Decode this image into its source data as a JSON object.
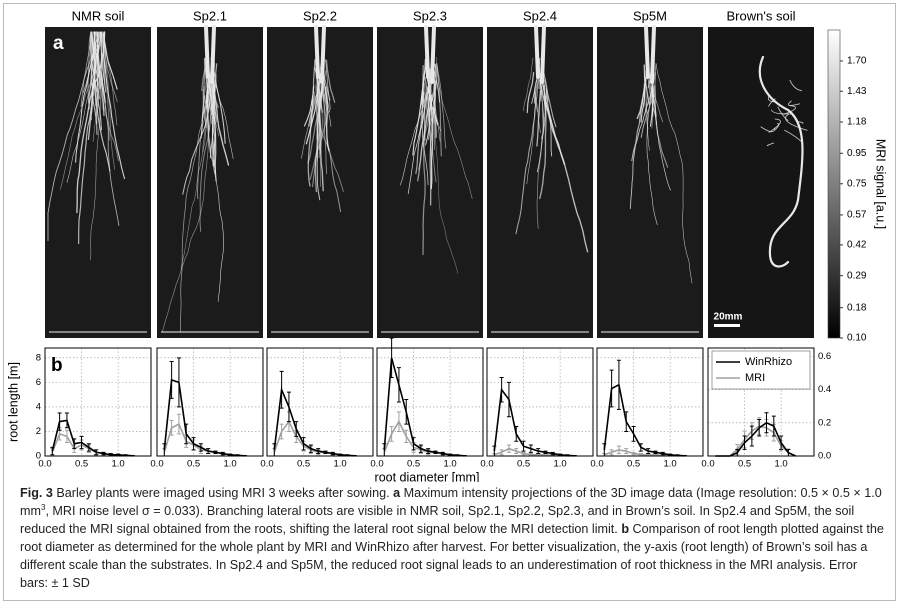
{
  "images": {
    "panel_label": "a",
    "scale_bar": "20mm",
    "panels": [
      "NMR soil",
      "Sp2.1",
      "Sp2.2",
      "Sp2.3",
      "Sp2.4",
      "Sp5M",
      "Brown's soil"
    ]
  },
  "colorbar": {
    "label": "MRI signal [a.u.]",
    "scale": "sqrt",
    "lim": [
      0.1,
      2.0
    ],
    "ticks": [
      {
        "value": 0.1,
        "label": "0.10"
      },
      {
        "value": 0.18,
        "label": "0.18"
      },
      {
        "value": 0.29,
        "label": "0.29"
      },
      {
        "value": 0.42,
        "label": "0.42"
      },
      {
        "value": 0.57,
        "label": "0.57"
      },
      {
        "value": 0.75,
        "label": "0.75"
      },
      {
        "value": 0.95,
        "label": "0.95"
      },
      {
        "value": 1.18,
        "label": "1.18"
      },
      {
        "value": 1.43,
        "label": "1.43"
      },
      {
        "value": 1.7,
        "label": "1.70"
      }
    ]
  },
  "chart_data": [
    {
      "type": "line",
      "panel_label": "b",
      "ylabel": "root length [m]",
      "xlabel": "root diameter [mm]",
      "ytick_labels": "left",
      "x": [
        0.1,
        0.2,
        0.3,
        0.4,
        0.5,
        0.6,
        0.7,
        0.8,
        0.9,
        1.0,
        1.1,
        1.2
      ],
      "xlim": [
        0,
        1.45
      ],
      "xticks": [
        {
          "value": 0,
          "label": "0.0"
        },
        {
          "value": 0.5,
          "label": "0.5"
        },
        {
          "value": 1,
          "label": "1.0"
        }
      ],
      "ylim": [
        0,
        8.8
      ],
      "yticks": [
        0,
        2,
        4,
        6,
        8
      ],
      "grid": true,
      "series": [
        {
          "color": "#000000",
          "values": [
            0.4,
            2.8,
            2.9,
            1.0,
            1.1,
            0.7,
            0.3,
            0.2,
            0.1,
            0.1,
            0.05,
            0.02
          ],
          "errors": [
            0.3,
            0.7,
            0.6,
            0.4,
            0.5,
            0.3,
            0.2,
            0.1,
            0.1,
            0.05,
            0.05,
            0.02
          ]
        },
        {
          "color": "#a0a0a0",
          "values": [
            0.3,
            1.8,
            1.6,
            0.6,
            0.9,
            0.6,
            0.3,
            0.2,
            0.1,
            0.1,
            0.05,
            0.02
          ],
          "errors": [
            0.3,
            0.5,
            0.5,
            0.3,
            0.4,
            0.3,
            0.2,
            0.1,
            0.1,
            0.05,
            0.05,
            0.02
          ]
        }
      ]
    },
    {
      "type": "line",
      "ytick_labels": "none",
      "x": [
        0.1,
        0.2,
        0.3,
        0.4,
        0.5,
        0.6,
        0.7,
        0.8,
        0.9,
        1.0,
        1.1,
        1.2
      ],
      "xlim": [
        0,
        1.45
      ],
      "xticks": [
        {
          "value": 0,
          "label": "0.0"
        },
        {
          "value": 0.5,
          "label": "0.5"
        },
        {
          "value": 1,
          "label": "1.0"
        }
      ],
      "ylim": [
        0,
        8.8
      ],
      "yticks": [
        0,
        2,
        4,
        6,
        8
      ],
      "grid": true,
      "series": [
        {
          "color": "#000000",
          "values": [
            0.5,
            6.2,
            6.0,
            1.8,
            1.0,
            0.7,
            0.4,
            0.3,
            0.2,
            0.1,
            0.05,
            0.02
          ],
          "errors": [
            0.5,
            1.5,
            2.0,
            0.8,
            0.5,
            0.3,
            0.2,
            0.1,
            0.1,
            0.05,
            0.05,
            0.02
          ]
        },
        {
          "color": "#a0a0a0",
          "values": [
            0.3,
            2.3,
            2.6,
            1.2,
            0.9,
            0.5,
            0.4,
            0.3,
            0.2,
            0.1,
            0.05,
            0.02
          ],
          "errors": [
            0.3,
            0.6,
            0.8,
            0.5,
            0.4,
            0.3,
            0.2,
            0.1,
            0.1,
            0.05,
            0.05,
            0.02
          ]
        }
      ]
    },
    {
      "type": "line",
      "ytick_labels": "none",
      "x": [
        0.1,
        0.2,
        0.3,
        0.4,
        0.5,
        0.6,
        0.7,
        0.8,
        0.9,
        1.0,
        1.1,
        1.2
      ],
      "xlim": [
        0,
        1.45
      ],
      "xticks": [
        {
          "value": 0,
          "label": "0.0"
        },
        {
          "value": 0.5,
          "label": "0.5"
        },
        {
          "value": 1,
          "label": "1.0"
        }
      ],
      "ylim": [
        0,
        8.8
      ],
      "yticks": [
        0,
        2,
        4,
        6,
        8
      ],
      "grid": true,
      "series": [
        {
          "color": "#000000",
          "values": [
            0.5,
            5.4,
            4.0,
            2.2,
            1.0,
            0.6,
            0.4,
            0.3,
            0.2,
            0.1,
            0.05,
            0.02
          ],
          "errors": [
            0.5,
            1.5,
            1.2,
            0.6,
            0.5,
            0.3,
            0.2,
            0.1,
            0.1,
            0.05,
            0.05,
            0.02
          ]
        },
        {
          "color": "#a0a0a0",
          "values": [
            0.3,
            2.0,
            2.8,
            1.6,
            0.8,
            0.5,
            0.3,
            0.3,
            0.2,
            0.1,
            0.05,
            0.02
          ],
          "errors": [
            0.3,
            0.6,
            0.8,
            0.5,
            0.4,
            0.3,
            0.2,
            0.1,
            0.1,
            0.05,
            0.05,
            0.02
          ]
        }
      ]
    },
    {
      "type": "line",
      "ytick_labels": "none",
      "x": [
        0.1,
        0.2,
        0.3,
        0.4,
        0.5,
        0.6,
        0.7,
        0.8,
        0.9,
        1.0,
        1.1,
        1.2
      ],
      "xlim": [
        0,
        1.45
      ],
      "xticks": [
        {
          "value": 0,
          "label": "0.0"
        },
        {
          "value": 0.5,
          "label": "0.5"
        },
        {
          "value": 1,
          "label": "1.0"
        }
      ],
      "ylim": [
        0,
        8.8
      ],
      "yticks": [
        0,
        2,
        4,
        6,
        8
      ],
      "grid": true,
      "series": [
        {
          "color": "#000000",
          "values": [
            0.5,
            8.0,
            5.8,
            3.6,
            1.0,
            0.6,
            0.4,
            0.3,
            0.2,
            0.1,
            0.05,
            0.02
          ],
          "errors": [
            0.5,
            1.6,
            1.4,
            1.0,
            0.5,
            0.3,
            0.2,
            0.1,
            0.1,
            0.05,
            0.05,
            0.02
          ]
        },
        {
          "color": "#a0a0a0",
          "values": [
            0.3,
            1.8,
            2.8,
            1.6,
            0.7,
            0.5,
            0.3,
            0.3,
            0.2,
            0.1,
            0.05,
            0.02
          ],
          "errors": [
            0.3,
            0.6,
            0.8,
            0.5,
            0.4,
            0.3,
            0.2,
            0.1,
            0.1,
            0.05,
            0.05,
            0.02
          ]
        }
      ]
    },
    {
      "type": "line",
      "ytick_labels": "none",
      "x": [
        0.1,
        0.2,
        0.3,
        0.4,
        0.5,
        0.6,
        0.7,
        0.8,
        0.9,
        1.0,
        1.1,
        1.2
      ],
      "xlim": [
        0,
        1.45
      ],
      "xticks": [
        {
          "value": 0,
          "label": "0.0"
        },
        {
          "value": 0.5,
          "label": "0.5"
        },
        {
          "value": 1,
          "label": "1.0"
        }
      ],
      "ylim": [
        0,
        8.8
      ],
      "yticks": [
        0,
        2,
        4,
        6,
        8
      ],
      "grid": true,
      "series": [
        {
          "color": "#000000",
          "values": [
            0.4,
            5.4,
            4.6,
            1.8,
            0.8,
            0.6,
            0.4,
            0.3,
            0.2,
            0.1,
            0.05,
            0.02
          ],
          "errors": [
            0.4,
            1.0,
            1.4,
            0.6,
            0.4,
            0.3,
            0.2,
            0.1,
            0.1,
            0.05,
            0.05,
            0.02
          ]
        },
        {
          "color": "#a0a0a0",
          "values": [
            0.1,
            0.3,
            0.6,
            0.4,
            0.2,
            0.1,
            0.1,
            0.1,
            0.05,
            0.05,
            0.02,
            0.02
          ],
          "errors": [
            0.1,
            0.2,
            0.3,
            0.2,
            0.1,
            0.1,
            0.05,
            0.05,
            0.05,
            0.05,
            0.02,
            0.02
          ]
        }
      ]
    },
    {
      "type": "line",
      "ytick_labels": "none",
      "x": [
        0.1,
        0.2,
        0.3,
        0.4,
        0.5,
        0.6,
        0.7,
        0.8,
        0.9,
        1.0,
        1.1,
        1.2
      ],
      "xlim": [
        0,
        1.45
      ],
      "xticks": [
        {
          "value": 0,
          "label": "0.0"
        },
        {
          "value": 0.5,
          "label": "0.5"
        },
        {
          "value": 1,
          "label": "1.0"
        }
      ],
      "ylim": [
        0,
        8.8
      ],
      "yticks": [
        0,
        2,
        4,
        6,
        8
      ],
      "grid": true,
      "series": [
        {
          "color": "#000000",
          "values": [
            0.5,
            5.5,
            5.8,
            2.8,
            1.8,
            0.7,
            0.4,
            0.3,
            0.2,
            0.1,
            0.05,
            0.02
          ],
          "errors": [
            0.5,
            1.5,
            2.0,
            0.8,
            0.6,
            0.3,
            0.2,
            0.1,
            0.1,
            0.05,
            0.05,
            0.02
          ]
        },
        {
          "color": "#a0a0a0",
          "values": [
            0.1,
            0.3,
            0.5,
            0.4,
            0.2,
            0.1,
            0.1,
            0.1,
            0.05,
            0.05,
            0.02,
            0.02
          ],
          "errors": [
            0.1,
            0.2,
            0.3,
            0.2,
            0.1,
            0.1,
            0.05,
            0.05,
            0.05,
            0.05,
            0.02,
            0.02
          ]
        }
      ]
    },
    {
      "type": "line",
      "ytick_labels": "right",
      "legend": "upper right",
      "x": [
        0.1,
        0.2,
        0.3,
        0.4,
        0.5,
        0.6,
        0.7,
        0.8,
        0.9,
        1.0,
        1.1,
        1.2
      ],
      "xlim": [
        0,
        1.45
      ],
      "xticks": [
        {
          "value": 0,
          "label": "0.0"
        },
        {
          "value": 0.5,
          "label": "0.5"
        },
        {
          "value": 1,
          "label": "1.0"
        }
      ],
      "ylim": [
        0,
        0.65
      ],
      "yticks": [
        {
          "value": 0,
          "label": "0.0"
        },
        {
          "value": 0.2,
          "label": "0.2"
        },
        {
          "value": 0.4,
          "label": "0.4"
        },
        {
          "value": 0.6,
          "label": "0.6"
        }
      ],
      "grid": true,
      "series": [
        {
          "name": "WinRhizo",
          "color": "#000000",
          "values": [
            0,
            0,
            0,
            0.02,
            0.08,
            0.12,
            0.17,
            0.2,
            0.18,
            0.08,
            0.02,
            0
          ],
          "errors": [
            null,
            null,
            null,
            0.02,
            0.04,
            0.06,
            0.05,
            0.06,
            0.06,
            0.04,
            0.02,
            null
          ]
        },
        {
          "name": "MRI",
          "color": "#a0a0a0",
          "values": [
            0,
            0,
            0,
            0.04,
            0.1,
            0.15,
            0.18,
            0.17,
            0.14,
            0.06,
            0.02,
            0
          ],
          "errors": [
            null,
            null,
            null,
            0.03,
            0.05,
            0.05,
            0.05,
            0.05,
            0.05,
            0.03,
            0.02,
            null
          ]
        }
      ]
    }
  ],
  "caption": {
    "parts": [
      "Fig. 3",
      "  Barley plants were imaged using MRI 3 weeks after sowing. ",
      "a",
      " Maximum intensity projections of the 3D image data (Image resolution: 0.5 × 0.5 × 1.0 mm",
      "3",
      ", MRI noise level σ = 0.033). Branching lateral roots are visible in NMR soil, Sp2.1, Sp2.2, Sp2.3, and in Brown’s soil. In Sp2.4 and Sp5M, the soil reduced the MRI signal obtained from the roots, shifting the lateral root signal below the MRI detection limit. ",
      "b",
      " Comparison of root length plotted against the root diameter as determined for the whole plant by MRI and WinRhizo after harvest. For better visualization, the y-axis (root length) of Brown’s soil has a different scale than the substrates. In Sp2.4 and Sp5M, the reduced root signal leads to an underestimation of root thickness in the MRI analysis. Error bars: ± 1 SD"
    ]
  }
}
